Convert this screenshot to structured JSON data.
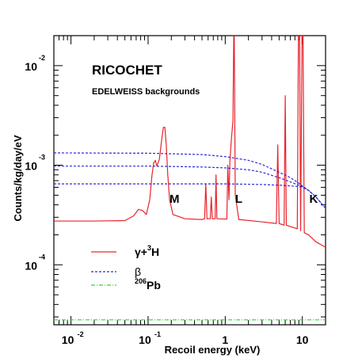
{
  "chart_data": {
    "type": "line",
    "title": "RICOCHET",
    "subtitle": "EDELWEISS backgrounds",
    "xlabel": "Recoil energy (keV)",
    "ylabel": "Counts/kg/day/eV",
    "xscale": "log",
    "yscale": "log",
    "xlim": [
      0.006,
      20
    ],
    "ylim": [
      2.5e-05,
      0.02
    ],
    "x_ticks": [
      {
        "base": "10",
        "exp": "-2",
        "value": 0.01
      },
      {
        "base": "10",
        "exp": "-1",
        "value": 0.1
      },
      {
        "base": "1",
        "exp": "",
        "value": 1
      },
      {
        "base": "10",
        "exp": "",
        "value": 10
      }
    ],
    "y_ticks": [
      {
        "base": "10",
        "exp": "-4",
        "value": 0.0001
      },
      {
        "base": "10",
        "exp": "-3",
        "value": 0.001
      },
      {
        "base": "10",
        "exp": "-2",
        "value": 0.01
      }
    ],
    "annotations": [
      {
        "text": "M",
        "x": 0.22,
        "y": 0.00042
      },
      {
        "text": "L",
        "x": 1.5,
        "y": 0.00042
      },
      {
        "text": "K",
        "x": 14,
        "y": 0.00042
      }
    ],
    "legend": {
      "placement": "lower-left",
      "entries": [
        {
          "series": "gamma",
          "symbol": "γ+",
          "sup": "3",
          "rest": "H",
          "color": "#e8242c",
          "dash": "solid"
        },
        {
          "series": "beta",
          "symbol": "β",
          "sup": "",
          "rest": "",
          "color": "#2b2bd9",
          "dash": "dashed"
        },
        {
          "series": "pb",
          "symbol": "",
          "sup": "206",
          "rest": "Pb",
          "color": "#2bd92b",
          "dash": "dashdot"
        }
      ]
    },
    "series": [
      {
        "id": "gamma",
        "color": "#e8242c",
        "dash": "solid",
        "points": [
          [
            0.006,
            0.000275
          ],
          [
            0.02,
            0.000275
          ],
          [
            0.05,
            0.000278
          ],
          [
            0.065,
            0.00031
          ],
          [
            0.075,
            0.00036
          ],
          [
            0.085,
            0.00035
          ],
          [
            0.095,
            0.00032
          ],
          [
            0.105,
            0.00045
          ],
          [
            0.112,
            0.00078
          ],
          [
            0.118,
            0.00105
          ],
          [
            0.124,
            0.00112
          ],
          [
            0.13,
            0.00098
          ],
          [
            0.14,
            0.00115
          ],
          [
            0.15,
            0.0018
          ],
          [
            0.158,
            0.0024
          ],
          [
            0.165,
            0.0024
          ],
          [
            0.172,
            0.0016
          ],
          [
            0.18,
            0.0008
          ],
          [
            0.19,
            0.00045
          ],
          [
            0.21,
            0.00032
          ],
          [
            0.3,
            0.00029
          ],
          [
            0.5,
            0.000285
          ],
          [
            0.54,
            0.00029
          ],
          [
            0.56,
            0.00065
          ],
          [
            0.58,
            0.00029
          ],
          [
            0.64,
            0.00029
          ],
          [
            0.66,
            0.00048
          ],
          [
            0.68,
            0.00029
          ],
          [
            0.74,
            0.00029
          ],
          [
            0.76,
            0.0008
          ],
          [
            0.78,
            0.00029
          ],
          [
            1.05,
            0.000288
          ],
          [
            1.08,
            0.001
          ],
          [
            1.12,
            0.00045
          ],
          [
            1.15,
            0.0011
          ],
          [
            1.2,
            0.0018
          ],
          [
            1.26,
            0.0028
          ],
          [
            1.29,
            0.02
          ],
          [
            1.31,
            0.02
          ],
          [
            1.35,
            0.0005
          ],
          [
            1.5,
            0.000285
          ],
          [
            3.0,
            0.00027
          ],
          [
            4.6,
            0.00026
          ],
          [
            4.8,
            0.0016
          ],
          [
            5.0,
            0.00026
          ],
          [
            5.8,
            0.00025
          ],
          [
            6.0,
            0.005
          ],
          [
            6.2,
            0.00025
          ],
          [
            8.6,
            0.00023
          ],
          [
            8.9,
            0.02
          ],
          [
            9.2,
            0.02
          ],
          [
            9.5,
            0.00022
          ],
          [
            9.9,
            0.02
          ],
          [
            10.2,
            0.02
          ],
          [
            10.6,
            0.00021
          ],
          [
            12,
            0.0002
          ],
          [
            15,
            0.00017
          ],
          [
            20,
            0.00015
          ]
        ]
      },
      {
        "id": "beta",
        "color": "#2b2bd9",
        "dash": "dashed",
        "points": [
          [
            0.006,
            0.00133
          ],
          [
            0.1,
            0.00132
          ],
          [
            0.5,
            0.00128
          ],
          [
            1,
            0.00122
          ],
          [
            2,
            0.00112
          ],
          [
            3,
            0.00102
          ],
          [
            5,
            0.00085
          ],
          [
            7,
            0.00075
          ],
          [
            9,
            0.00066
          ],
          [
            10,
            0.00062
          ],
          [
            12,
            0.00056
          ],
          [
            15,
            0.00048
          ],
          [
            20,
            0.00037
          ]
        ]
      },
      {
        "id": "beta",
        "color": "#2b2bd9",
        "dash": "dashed",
        "points": [
          [
            0.006,
            0.00098
          ],
          [
            0.1,
            0.00098
          ],
          [
            0.5,
            0.00096
          ],
          [
            1,
            0.00094
          ],
          [
            2,
            0.0009
          ],
          [
            3,
            0.00085
          ],
          [
            5,
            0.00075
          ],
          [
            7,
            0.00068
          ],
          [
            9,
            0.00063
          ],
          [
            10,
            0.00061
          ],
          [
            12,
            0.00056
          ],
          [
            15,
            0.00048
          ],
          [
            20,
            0.00037
          ]
        ]
      },
      {
        "id": "beta",
        "color": "#2b2bd9",
        "dash": "dashed",
        "points": [
          [
            0.006,
            0.00065
          ],
          [
            0.5,
            0.00065
          ],
          [
            1,
            0.00065
          ],
          [
            3,
            0.00064
          ],
          [
            5,
            0.00063
          ],
          [
            7,
            0.00062
          ],
          [
            9,
            0.00061
          ],
          [
            10,
            0.0006
          ],
          [
            12,
            0.00056
          ],
          [
            15,
            0.00048
          ],
          [
            20,
            0.00037
          ]
        ]
      },
      {
        "id": "pb",
        "color": "#2bd92b",
        "dash": "dashdot",
        "points": [
          [
            0.006,
            2.8e-05
          ],
          [
            20,
            2.8e-05
          ]
        ]
      }
    ]
  }
}
